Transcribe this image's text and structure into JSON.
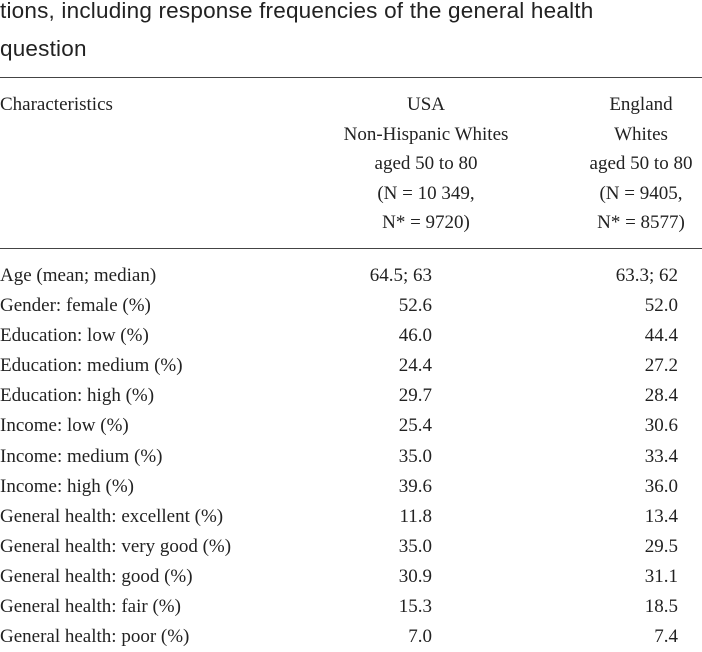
{
  "caption": {
    "line1": "tions, including response frequencies of the general health",
    "line2": "question"
  },
  "table": {
    "header": {
      "characteristics": "Characteristics",
      "usa": [
        "USA",
        "Non-Hispanic Whites",
        "aged 50 to 80",
        "(N = 10 349,",
        "N* = 9720)"
      ],
      "england": [
        "England",
        "Whites",
        "aged 50 to 80",
        "(N = 9405,",
        "N* = 8577)"
      ]
    },
    "rows": [
      {
        "label": "Age (mean; median)",
        "usa": "64.5; 63",
        "england": "63.3; 62"
      },
      {
        "label": "Gender: female (%)",
        "usa": "52.6",
        "england": "52.0"
      },
      {
        "label": "Education: low (%)",
        "usa": "46.0",
        "england": "44.4"
      },
      {
        "label": "Education: medium (%)",
        "usa": "24.4",
        "england": "27.2"
      },
      {
        "label": "Education: high (%)",
        "usa": "29.7",
        "england": "28.4"
      },
      {
        "label": "Income: low (%)",
        "usa": "25.4",
        "england": "30.6"
      },
      {
        "label": "Income: medium (%)",
        "usa": "35.0",
        "england": "33.4"
      },
      {
        "label": "Income: high (%)",
        "usa": "39.6",
        "england": "36.0"
      },
      {
        "label": "General health: excellent (%)",
        "usa": "11.8",
        "england": "13.4"
      },
      {
        "label": "General health: very good (%)",
        "usa": "35.0",
        "england": "29.5"
      },
      {
        "label": "General health: good (%)",
        "usa": "30.9",
        "england": "31.1"
      },
      {
        "label": "General health: fair (%)",
        "usa": "15.3",
        "england": "18.5"
      },
      {
        "label": "General health: poor (%)",
        "usa": "7.0",
        "england": "7.4"
      }
    ]
  }
}
